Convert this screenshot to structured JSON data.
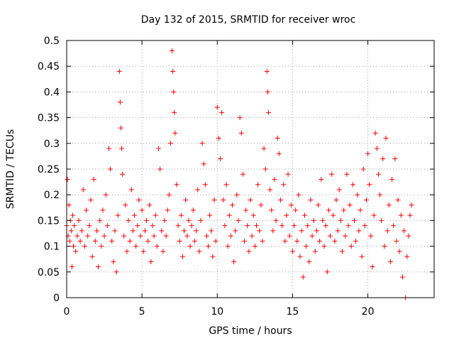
{
  "chart_data": {
    "type": "scatter",
    "title": "Day 132 of 2015, SRMTID for receiver wroc",
    "xlabel": "GPS time / hours",
    "ylabel": "SRMTID / TECUs",
    "xlim": [
      0,
      24.4
    ],
    "ylim": [
      0,
      0.5
    ],
    "x_ticks": [
      0,
      5,
      10,
      15,
      20
    ],
    "x_tick_labels": [
      "0",
      "5",
      "10",
      "15",
      "20"
    ],
    "y_ticks": [
      0,
      0.05,
      0.1,
      0.15,
      0.2,
      0.25,
      0.3,
      0.35,
      0.4,
      0.45,
      0.5
    ],
    "y_tick_labels": [
      "0",
      "0.05",
      "0.1",
      "0.15",
      "0.2",
      "0.25",
      "0.3",
      "0.35",
      "0.4",
      "0.45",
      "0.5"
    ],
    "grid": true,
    "marker": "+",
    "color": "#ff0000",
    "series": [
      {
        "name": "SRMTID",
        "points": [
          [
            0.0,
            0.14
          ],
          [
            0.05,
            0.23
          ],
          [
            0.1,
            0.12
          ],
          [
            0.15,
            0.18
          ],
          [
            0.2,
            0.11
          ],
          [
            0.25,
            0.15
          ],
          [
            0.3,
            0.13
          ],
          [
            0.35,
            0.06
          ],
          [
            0.4,
            0.16
          ],
          [
            0.45,
            0.1
          ],
          [
            0.5,
            0.14
          ],
          [
            0.6,
            0.09
          ],
          [
            0.7,
            0.12
          ],
          [
            0.8,
            0.15
          ],
          [
            0.9,
            0.11
          ],
          [
            1.0,
            0.13
          ],
          [
            1.1,
            0.21
          ],
          [
            1.2,
            0.1
          ],
          [
            1.3,
            0.17
          ],
          [
            1.4,
            0.12
          ],
          [
            1.5,
            0.14
          ],
          [
            1.6,
            0.19
          ],
          [
            1.7,
            0.08
          ],
          [
            1.8,
            0.23
          ],
          [
            1.9,
            0.11
          ],
          [
            2.0,
            0.13
          ],
          [
            2.1,
            0.06
          ],
          [
            2.2,
            0.15
          ],
          [
            2.3,
            0.1
          ],
          [
            2.4,
            0.17
          ],
          [
            2.5,
            0.12
          ],
          [
            2.6,
            0.2
          ],
          [
            2.7,
            0.14
          ],
          [
            2.8,
            0.29
          ],
          [
            2.9,
            0.25
          ],
          [
            3.0,
            0.11
          ],
          [
            3.1,
            0.07
          ],
          [
            3.2,
            0.13
          ],
          [
            3.3,
            0.05
          ],
          [
            3.4,
            0.16
          ],
          [
            3.5,
            0.44
          ],
          [
            3.55,
            0.38
          ],
          [
            3.6,
            0.33
          ],
          [
            3.65,
            0.29
          ],
          [
            3.7,
            0.24
          ],
          [
            3.8,
            0.12
          ],
          [
            3.9,
            0.18
          ],
          [
            4.0,
            0.09
          ],
          [
            4.1,
            0.15
          ],
          [
            4.2,
            0.11
          ],
          [
            4.3,
            0.21
          ],
          [
            4.4,
            0.13
          ],
          [
            4.5,
            0.16
          ],
          [
            4.6,
            0.1
          ],
          [
            4.7,
            0.14
          ],
          [
            4.8,
            0.19
          ],
          [
            4.9,
            0.12
          ],
          [
            5.0,
            0.17
          ],
          [
            5.1,
            0.09
          ],
          [
            5.2,
            0.13
          ],
          [
            5.3,
            0.15
          ],
          [
            5.4,
            0.11
          ],
          [
            5.5,
            0.18
          ],
          [
            5.6,
            0.07
          ],
          [
            5.7,
            0.14
          ],
          [
            5.8,
            0.12
          ],
          [
            5.9,
            0.16
          ],
          [
            6.0,
            0.1
          ],
          [
            6.1,
            0.29
          ],
          [
            6.2,
            0.25
          ],
          [
            6.3,
            0.13
          ],
          [
            6.4,
            0.09
          ],
          [
            6.5,
            0.15
          ],
          [
            6.6,
            0.12
          ],
          [
            6.7,
            0.17
          ],
          [
            6.8,
            0.2
          ],
          [
            6.9,
            0.3
          ],
          [
            7.0,
            0.48
          ],
          [
            7.05,
            0.44
          ],
          [
            7.1,
            0.4
          ],
          [
            7.15,
            0.36
          ],
          [
            7.2,
            0.32
          ],
          [
            7.3,
            0.22
          ],
          [
            7.4,
            0.14
          ],
          [
            7.5,
            0.11
          ],
          [
            7.6,
            0.16
          ],
          [
            7.7,
            0.08
          ],
          [
            7.8,
            0.13
          ],
          [
            7.9,
            0.19
          ],
          [
            8.0,
            0.12
          ],
          [
            8.1,
            0.15
          ],
          [
            8.2,
            0.1
          ],
          [
            8.3,
            0.14
          ],
          [
            8.4,
            0.17
          ],
          [
            8.5,
            0.11
          ],
          [
            8.6,
            0.13
          ],
          [
            8.7,
            0.21
          ],
          [
            8.8,
            0.09
          ],
          [
            8.9,
            0.15
          ],
          [
            9.0,
            0.3
          ],
          [
            9.1,
            0.26
          ],
          [
            9.2,
            0.22
          ],
          [
            9.3,
            0.12
          ],
          [
            9.4,
            0.1
          ],
          [
            9.5,
            0.16
          ],
          [
            9.6,
            0.13
          ],
          [
            9.7,
            0.08
          ],
          [
            9.8,
            0.19
          ],
          [
            9.9,
            0.11
          ],
          [
            10.0,
            0.37
          ],
          [
            10.1,
            0.31
          ],
          [
            10.2,
            0.27
          ],
          [
            10.3,
            0.36
          ],
          [
            10.4,
            0.19
          ],
          [
            10.5,
            0.14
          ],
          [
            10.6,
            0.22
          ],
          [
            10.7,
            0.1
          ],
          [
            10.8,
            0.16
          ],
          [
            10.9,
            0.12
          ],
          [
            11.0,
            0.18
          ],
          [
            11.1,
            0.07
          ],
          [
            11.2,
            0.13
          ],
          [
            11.3,
            0.2
          ],
          [
            11.4,
            0.15
          ],
          [
            11.5,
            0.35
          ],
          [
            11.6,
            0.32
          ],
          [
            11.7,
            0.24
          ],
          [
            11.8,
            0.11
          ],
          [
            11.9,
            0.17
          ],
          [
            12.0,
            0.14
          ],
          [
            12.1,
            0.09
          ],
          [
            12.2,
            0.19
          ],
          [
            12.3,
            0.12
          ],
          [
            12.4,
            0.16
          ],
          [
            12.5,
            0.1
          ],
          [
            12.6,
            0.14
          ],
          [
            12.7,
            0.22
          ],
          [
            12.8,
            0.13
          ],
          [
            12.9,
            0.18
          ],
          [
            13.0,
            0.11
          ],
          [
            13.1,
            0.29
          ],
          [
            13.2,
            0.25
          ],
          [
            13.3,
            0.44
          ],
          [
            13.35,
            0.4
          ],
          [
            13.4,
            0.36
          ],
          [
            13.5,
            0.21
          ],
          [
            13.6,
            0.17
          ],
          [
            13.7,
            0.13
          ],
          [
            13.8,
            0.23
          ],
          [
            13.9,
            0.15
          ],
          [
            14.0,
            0.31
          ],
          [
            14.1,
            0.28
          ],
          [
            14.2,
            0.19
          ],
          [
            14.3,
            0.14
          ],
          [
            14.4,
            0.22
          ],
          [
            14.5,
            0.11
          ],
          [
            14.6,
            0.16
          ],
          [
            14.7,
            0.24
          ],
          [
            14.8,
            0.12
          ],
          [
            14.9,
            0.18
          ],
          [
            15.0,
            0.09
          ],
          [
            15.1,
            0.14
          ],
          [
            15.2,
            0.17
          ],
          [
            15.3,
            0.11
          ],
          [
            15.4,
            0.2
          ],
          [
            15.5,
            0.08
          ],
          [
            15.6,
            0.13
          ],
          [
            15.7,
            0.04
          ],
          [
            15.8,
            0.16
          ],
          [
            15.9,
            0.1
          ],
          [
            16.0,
            0.14
          ],
          [
            16.1,
            0.07
          ],
          [
            16.2,
            0.19
          ],
          [
            16.3,
            0.12
          ],
          [
            16.4,
            0.15
          ],
          [
            16.5,
            0.09
          ],
          [
            16.6,
            0.13
          ],
          [
            16.7,
            0.18
          ],
          [
            16.8,
            0.11
          ],
          [
            16.9,
            0.23
          ],
          [
            17.0,
            0.15
          ],
          [
            17.1,
            0.1
          ],
          [
            17.2,
            0.14
          ],
          [
            17.3,
            0.05
          ],
          [
            17.4,
            0.17
          ],
          [
            17.5,
            0.12
          ],
          [
            17.6,
            0.24
          ],
          [
            17.7,
            0.16
          ],
          [
            17.8,
            0.11
          ],
          [
            17.9,
            0.19
          ],
          [
            18.0,
            0.13
          ],
          [
            18.1,
            0.21
          ],
          [
            18.2,
            0.15
          ],
          [
            18.3,
            0.09
          ],
          [
            18.4,
            0.17
          ],
          [
            18.5,
            0.12
          ],
          [
            18.6,
            0.24
          ],
          [
            18.7,
            0.14
          ],
          [
            18.8,
            0.18
          ],
          [
            18.9,
            0.1
          ],
          [
            19.0,
            0.22
          ],
          [
            19.1,
            0.15
          ],
          [
            19.2,
            0.11
          ],
          [
            19.3,
            0.2
          ],
          [
            19.4,
            0.13
          ],
          [
            19.5,
            0.17
          ],
          [
            19.6,
            0.08
          ],
          [
            19.7,
            0.25
          ],
          [
            19.8,
            0.14
          ],
          [
            19.9,
            0.19
          ],
          [
            20.0,
            0.28
          ],
          [
            20.1,
            0.22
          ],
          [
            20.2,
            0.12
          ],
          [
            20.3,
            0.06
          ],
          [
            20.4,
            0.16
          ],
          [
            20.5,
            0.32
          ],
          [
            20.6,
            0.29
          ],
          [
            20.7,
            0.24
          ],
          [
            20.8,
            0.2
          ],
          [
            20.9,
            0.15
          ],
          [
            21.0,
            0.27
          ],
          [
            21.1,
            0.1
          ],
          [
            21.2,
            0.31
          ],
          [
            21.3,
            0.13
          ],
          [
            21.4,
            0.18
          ],
          [
            21.5,
            0.07
          ],
          [
            21.6,
            0.23
          ],
          [
            21.7,
            0.14
          ],
          [
            21.8,
            0.27
          ],
          [
            21.9,
            0.11
          ],
          [
            22.0,
            0.19
          ],
          [
            22.1,
            0.09
          ],
          [
            22.2,
            0.16
          ],
          [
            22.3,
            0.04
          ],
          [
            22.4,
            0.13
          ],
          [
            22.5,
            0.0
          ],
          [
            22.6,
            0.08
          ],
          [
            22.7,
            0.12
          ],
          [
            22.8,
            0.16
          ],
          [
            22.9,
            0.18
          ]
        ]
      }
    ]
  }
}
